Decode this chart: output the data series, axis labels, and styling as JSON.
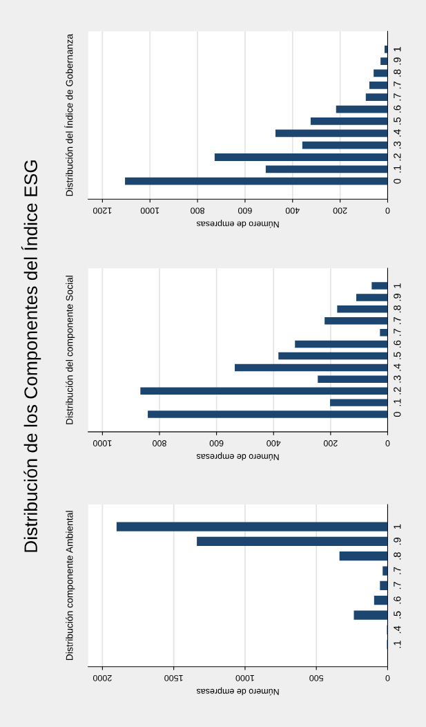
{
  "chart_data": [
    {
      "type": "bar",
      "orientation": "horizontal",
      "title": "Distribución del Índice de Gobernanza",
      "xlabel": "Número de empresas",
      "annotations": [
        "Distribución de los Componentes del Índice ESG"
      ],
      "categories": [
        "1",
        ".9",
        ".8",
        ".7",
        ".7",
        ".6",
        ".5",
        ".4",
        ".3",
        ".2",
        ".1",
        "0"
      ],
      "values": [
        13,
        30,
        59,
        77,
        92,
        217,
        324,
        472,
        359,
        728,
        513,
        1105
      ],
      "color": "#1c4670",
      "xlim": [
        1260,
        0
      ],
      "xticks": [
        1200,
        1000,
        800,
        600,
        400,
        200,
        0
      ],
      "grid": "x"
    },
    {
      "type": "bar",
      "orientation": "horizontal",
      "title": "Distribución del componente Social",
      "xlabel": "Número de empresas",
      "categories": [
        "1",
        ".9",
        ".8",
        ".7",
        ".7",
        ".6",
        ".5",
        ".4",
        ".3",
        ".2",
        ".1",
        "0"
      ],
      "values": [
        56,
        110,
        177,
        221,
        27,
        325,
        383,
        536,
        245,
        867,
        202,
        841
      ],
      "color": "#1c4670",
      "xlim": [
        1050,
        0
      ],
      "xticks": [
        1000,
        800,
        600,
        400,
        200,
        0
      ],
      "grid": "x"
    },
    {
      "type": "bar",
      "orientation": "horizontal",
      "title": "Distribución componente Ambiental",
      "xlabel": "Número de empresas",
      "categories": [
        "1",
        ".9",
        ".8",
        ".7",
        ".7",
        ".6",
        ".5",
        ".4",
        ".1"
      ],
      "values": [
        1901,
        1338,
        338,
        35,
        54,
        95,
        237,
        5,
        5
      ],
      "color": "#1c4670",
      "xlim": [
        2100,
        0
      ],
      "xticks": [
        2000,
        1500,
        1000,
        500,
        0
      ],
      "grid": "x"
    }
  ]
}
